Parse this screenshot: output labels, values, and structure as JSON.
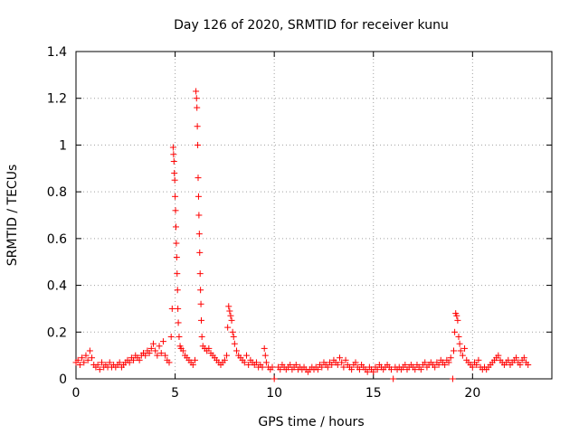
{
  "chart_data": {
    "type": "scatter",
    "title": "Day 126 of 2020, SRMTID for receiver kunu",
    "xlabel": "GPS time / hours",
    "ylabel": "SRMTID / TECUs",
    "xlim": [
      0,
      24
    ],
    "ylim": [
      0,
      1.4
    ],
    "xticks": [
      0,
      5,
      10,
      15,
      20
    ],
    "xtick_labels": [
      "0",
      "5",
      "10",
      "15",
      "20"
    ],
    "yticks": [
      0,
      0.2,
      0.4,
      0.6,
      0.8,
      1.0,
      1.2,
      1.4
    ],
    "ytick_labels": [
      "0",
      "0.2",
      "0.4",
      "0.6",
      "0.8",
      "1",
      "1.2",
      "1.4"
    ],
    "grid": true,
    "marker": "+",
    "color": "#ff0000",
    "series": [
      {
        "name": "SRMTID",
        "points": [
          [
            0.0,
            0.07
          ],
          [
            0.1,
            0.08
          ],
          [
            0.2,
            0.06
          ],
          [
            0.3,
            0.09
          ],
          [
            0.4,
            0.07
          ],
          [
            0.5,
            0.1
          ],
          [
            0.6,
            0.08
          ],
          [
            0.7,
            0.12
          ],
          [
            0.8,
            0.09
          ],
          [
            0.9,
            0.06
          ],
          [
            1.0,
            0.05
          ],
          [
            1.1,
            0.06
          ],
          [
            1.2,
            0.04
          ],
          [
            1.3,
            0.07
          ],
          [
            1.4,
            0.05
          ],
          [
            1.5,
            0.06
          ],
          [
            1.6,
            0.05
          ],
          [
            1.7,
            0.07
          ],
          [
            1.8,
            0.05
          ],
          [
            1.9,
            0.06
          ],
          [
            2.0,
            0.05
          ],
          [
            2.1,
            0.06
          ],
          [
            2.2,
            0.07
          ],
          [
            2.3,
            0.05
          ],
          [
            2.4,
            0.06
          ],
          [
            2.5,
            0.07
          ],
          [
            2.6,
            0.08
          ],
          [
            2.7,
            0.07
          ],
          [
            2.8,
            0.09
          ],
          [
            2.9,
            0.08
          ],
          [
            3.0,
            0.1
          ],
          [
            3.1,
            0.09
          ],
          [
            3.2,
            0.08
          ],
          [
            3.3,
            0.1
          ],
          [
            3.4,
            0.11
          ],
          [
            3.5,
            0.1
          ],
          [
            3.6,
            0.12
          ],
          [
            3.7,
            0.11
          ],
          [
            3.8,
            0.13
          ],
          [
            3.9,
            0.15
          ],
          [
            4.0,
            0.12
          ],
          [
            4.1,
            0.1
          ],
          [
            4.2,
            0.14
          ],
          [
            4.3,
            0.11
          ],
          [
            4.4,
            0.16
          ],
          [
            4.5,
            0.1
          ],
          [
            4.6,
            0.08
          ],
          [
            4.7,
            0.07
          ],
          [
            4.8,
            0.18
          ],
          [
            4.85,
            0.3
          ],
          [
            4.9,
            0.99
          ],
          [
            4.92,
            0.96
          ],
          [
            4.94,
            0.93
          ],
          [
            4.96,
            0.88
          ],
          [
            4.98,
            0.85
          ],
          [
            5.0,
            0.78
          ],
          [
            5.02,
            0.72
          ],
          [
            5.04,
            0.65
          ],
          [
            5.06,
            0.58
          ],
          [
            5.08,
            0.52
          ],
          [
            5.1,
            0.45
          ],
          [
            5.12,
            0.38
          ],
          [
            5.14,
            0.3
          ],
          [
            5.16,
            0.24
          ],
          [
            5.2,
            0.18
          ],
          [
            5.25,
            0.14
          ],
          [
            5.3,
            0.13
          ],
          [
            5.4,
            0.12
          ],
          [
            5.5,
            0.1
          ],
          [
            5.6,
            0.09
          ],
          [
            5.7,
            0.08
          ],
          [
            5.8,
            0.07
          ],
          [
            5.9,
            0.06
          ],
          [
            6.0,
            0.08
          ],
          [
            6.05,
            1.23
          ],
          [
            6.08,
            1.2
          ],
          [
            6.1,
            1.16
          ],
          [
            6.12,
            1.08
          ],
          [
            6.14,
            1.0
          ],
          [
            6.16,
            0.86
          ],
          [
            6.18,
            0.78
          ],
          [
            6.2,
            0.7
          ],
          [
            6.22,
            0.62
          ],
          [
            6.24,
            0.54
          ],
          [
            6.26,
            0.45
          ],
          [
            6.28,
            0.38
          ],
          [
            6.3,
            0.32
          ],
          [
            6.32,
            0.25
          ],
          [
            6.35,
            0.18
          ],
          [
            6.4,
            0.14
          ],
          [
            6.5,
            0.13
          ],
          [
            6.6,
            0.12
          ],
          [
            6.7,
            0.13
          ],
          [
            6.8,
            0.11
          ],
          [
            6.9,
            0.1
          ],
          [
            7.0,
            0.09
          ],
          [
            7.1,
            0.08
          ],
          [
            7.2,
            0.07
          ],
          [
            7.3,
            0.06
          ],
          [
            7.4,
            0.07
          ],
          [
            7.5,
            0.08
          ],
          [
            7.6,
            0.1
          ],
          [
            7.65,
            0.22
          ],
          [
            7.7,
            0.31
          ],
          [
            7.75,
            0.29
          ],
          [
            7.8,
            0.27
          ],
          [
            7.85,
            0.25
          ],
          [
            7.9,
            0.2
          ],
          [
            7.95,
            0.18
          ],
          [
            8.0,
            0.15
          ],
          [
            8.1,
            0.12
          ],
          [
            8.2,
            0.1
          ],
          [
            8.3,
            0.09
          ],
          [
            8.4,
            0.08
          ],
          [
            8.5,
            0.07
          ],
          [
            8.6,
            0.1
          ],
          [
            8.7,
            0.06
          ],
          [
            8.8,
            0.08
          ],
          [
            8.9,
            0.07
          ],
          [
            9.0,
            0.06
          ],
          [
            9.1,
            0.07
          ],
          [
            9.2,
            0.05
          ],
          [
            9.3,
            0.06
          ],
          [
            9.4,
            0.05
          ],
          [
            9.5,
            0.13
          ],
          [
            9.55,
            0.1
          ],
          [
            9.6,
            0.07
          ],
          [
            9.7,
            0.05
          ],
          [
            9.8,
            0.04
          ],
          [
            9.9,
            0.05
          ],
          [
            10.0,
            0.0
          ],
          [
            10.2,
            0.05
          ],
          [
            10.3,
            0.04
          ],
          [
            10.4,
            0.06
          ],
          [
            10.5,
            0.05
          ],
          [
            10.6,
            0.04
          ],
          [
            10.7,
            0.05
          ],
          [
            10.8,
            0.06
          ],
          [
            10.9,
            0.04
          ],
          [
            11.0,
            0.05
          ],
          [
            11.1,
            0.06
          ],
          [
            11.2,
            0.04
          ],
          [
            11.3,
            0.05
          ],
          [
            11.4,
            0.04
          ],
          [
            11.5,
            0.05
          ],
          [
            11.6,
            0.04
          ],
          [
            11.7,
            0.03
          ],
          [
            11.8,
            0.04
          ],
          [
            11.9,
            0.05
          ],
          [
            12.0,
            0.04
          ],
          [
            12.1,
            0.05
          ],
          [
            12.2,
            0.04
          ],
          [
            12.3,
            0.06
          ],
          [
            12.4,
            0.05
          ],
          [
            12.5,
            0.07
          ],
          [
            12.6,
            0.06
          ],
          [
            12.7,
            0.05
          ],
          [
            12.8,
            0.07
          ],
          [
            12.9,
            0.06
          ],
          [
            13.0,
            0.08
          ],
          [
            13.1,
            0.07
          ],
          [
            13.2,
            0.06
          ],
          [
            13.3,
            0.09
          ],
          [
            13.4,
            0.07
          ],
          [
            13.5,
            0.05
          ],
          [
            13.6,
            0.08
          ],
          [
            13.7,
            0.06
          ],
          [
            13.8,
            0.05
          ],
          [
            13.9,
            0.04
          ],
          [
            14.0,
            0.06
          ],
          [
            14.1,
            0.07
          ],
          [
            14.2,
            0.05
          ],
          [
            14.3,
            0.04
          ],
          [
            14.4,
            0.06
          ],
          [
            14.5,
            0.05
          ],
          [
            14.6,
            0.04
          ],
          [
            14.7,
            0.03
          ],
          [
            14.8,
            0.05
          ],
          [
            14.9,
            0.04
          ],
          [
            15.0,
            0.03
          ],
          [
            15.1,
            0.05
          ],
          [
            15.2,
            0.04
          ],
          [
            15.3,
            0.06
          ],
          [
            15.4,
            0.05
          ],
          [
            15.5,
            0.04
          ],
          [
            15.6,
            0.05
          ],
          [
            15.7,
            0.06
          ],
          [
            15.8,
            0.05
          ],
          [
            15.9,
            0.04
          ],
          [
            16.0,
            0.0
          ],
          [
            16.1,
            0.05
          ],
          [
            16.2,
            0.04
          ],
          [
            16.3,
            0.05
          ],
          [
            16.4,
            0.04
          ],
          [
            16.5,
            0.05
          ],
          [
            16.6,
            0.06
          ],
          [
            16.7,
            0.04
          ],
          [
            16.8,
            0.05
          ],
          [
            16.9,
            0.06
          ],
          [
            17.0,
            0.05
          ],
          [
            17.1,
            0.04
          ],
          [
            17.2,
            0.06
          ],
          [
            17.3,
            0.05
          ],
          [
            17.4,
            0.04
          ],
          [
            17.5,
            0.06
          ],
          [
            17.6,
            0.07
          ],
          [
            17.7,
            0.05
          ],
          [
            17.8,
            0.06
          ],
          [
            17.9,
            0.07
          ],
          [
            18.0,
            0.06
          ],
          [
            18.1,
            0.05
          ],
          [
            18.2,
            0.07
          ],
          [
            18.3,
            0.06
          ],
          [
            18.4,
            0.08
          ],
          [
            18.5,
            0.07
          ],
          [
            18.6,
            0.06
          ],
          [
            18.7,
            0.08
          ],
          [
            18.8,
            0.07
          ],
          [
            18.9,
            0.09
          ],
          [
            19.0,
            0.0
          ],
          [
            19.05,
            0.12
          ],
          [
            19.1,
            0.2
          ],
          [
            19.15,
            0.28
          ],
          [
            19.2,
            0.27
          ],
          [
            19.25,
            0.25
          ],
          [
            19.3,
            0.18
          ],
          [
            19.35,
            0.15
          ],
          [
            19.4,
            0.12
          ],
          [
            19.5,
            0.1
          ],
          [
            19.6,
            0.13
          ],
          [
            19.7,
            0.08
          ],
          [
            19.8,
            0.07
          ],
          [
            19.9,
            0.06
          ],
          [
            20.0,
            0.05
          ],
          [
            20.1,
            0.07
          ],
          [
            20.2,
            0.06
          ],
          [
            20.3,
            0.08
          ],
          [
            20.4,
            0.05
          ],
          [
            20.5,
            0.04
          ],
          [
            20.6,
            0.05
          ],
          [
            20.7,
            0.04
          ],
          [
            20.8,
            0.05
          ],
          [
            20.9,
            0.06
          ],
          [
            21.0,
            0.07
          ],
          [
            21.1,
            0.08
          ],
          [
            21.2,
            0.09
          ],
          [
            21.3,
            0.1
          ],
          [
            21.4,
            0.08
          ],
          [
            21.5,
            0.07
          ],
          [
            21.6,
            0.06
          ],
          [
            21.7,
            0.07
          ],
          [
            21.8,
            0.08
          ],
          [
            21.9,
            0.06
          ],
          [
            22.0,
            0.07
          ],
          [
            22.1,
            0.08
          ],
          [
            22.2,
            0.09
          ],
          [
            22.3,
            0.07
          ],
          [
            22.4,
            0.06
          ],
          [
            22.5,
            0.08
          ],
          [
            22.6,
            0.09
          ],
          [
            22.7,
            0.07
          ],
          [
            22.8,
            0.06
          ]
        ]
      }
    ]
  }
}
